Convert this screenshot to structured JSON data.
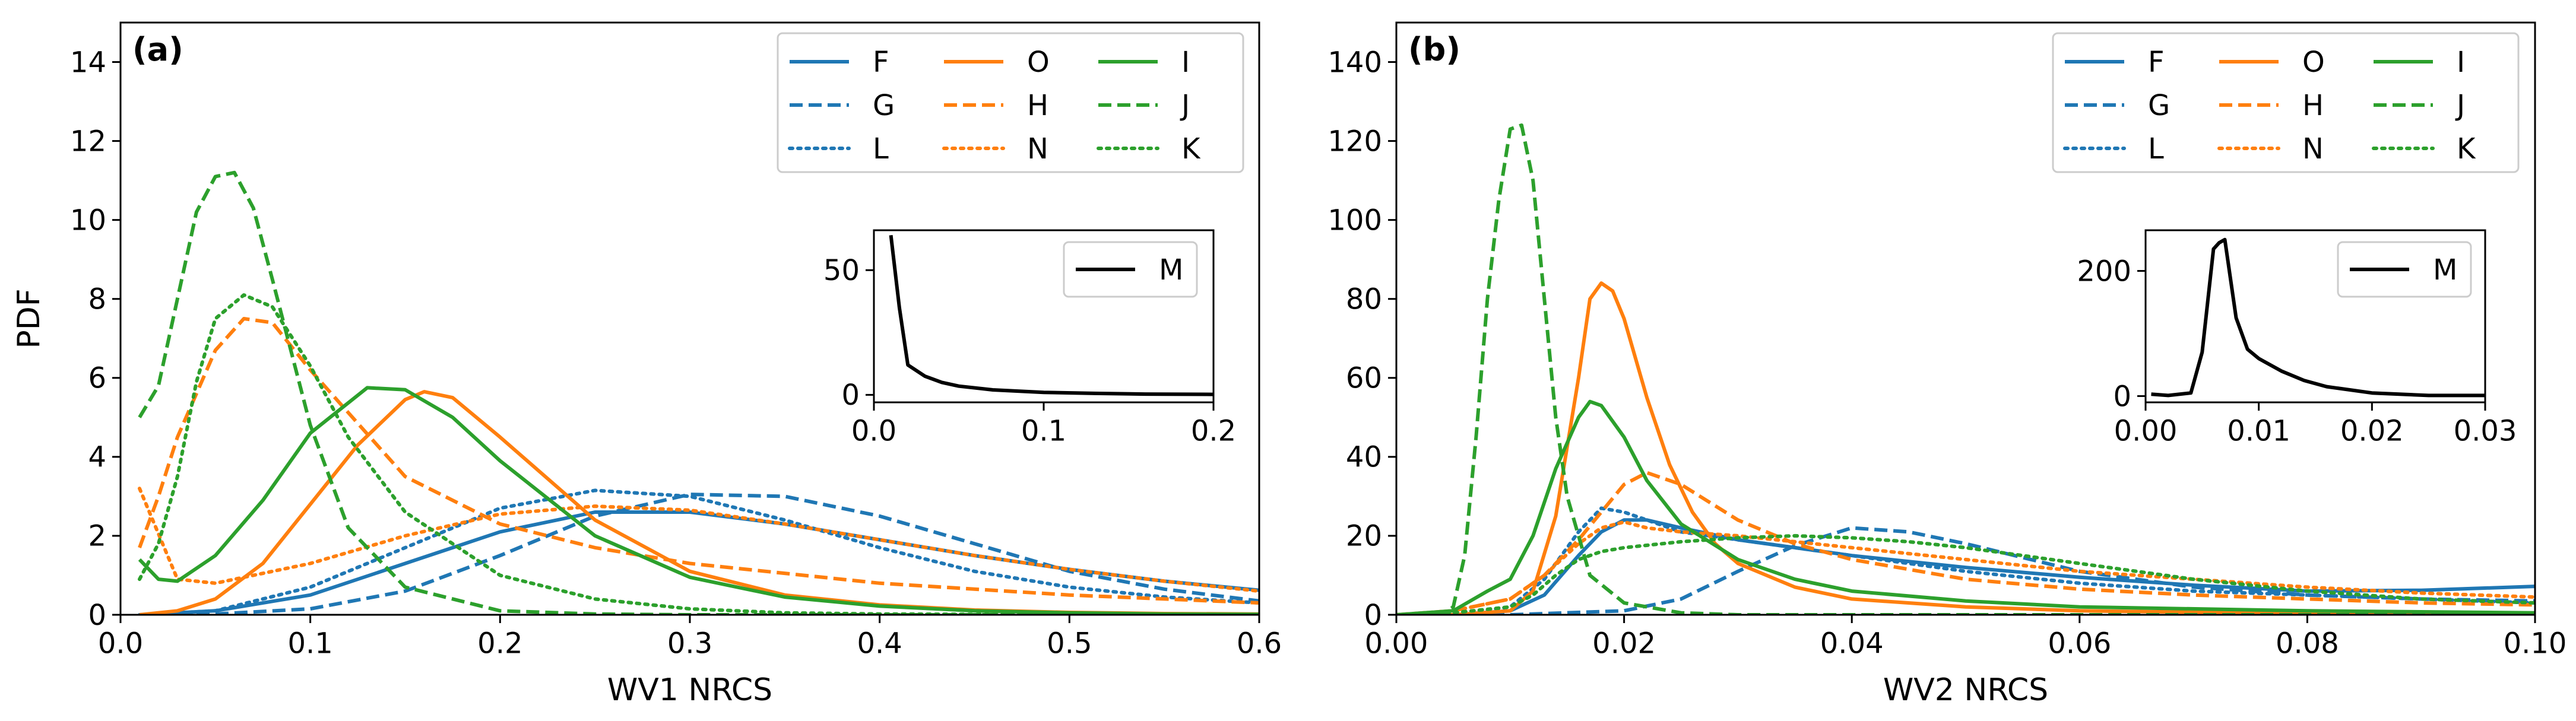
{
  "chart_data": [
    {
      "type": "line",
      "panel_label": "(a)",
      "xlabel": "WV1 NRCS",
      "ylabel": "PDF",
      "xlim": [
        0.0,
        0.6
      ],
      "ylim": [
        0,
        15
      ],
      "xticks": [
        0.0,
        0.1,
        0.2,
        0.3,
        0.4,
        0.5,
        0.6
      ],
      "xtick_labels": [
        "0.0",
        "0.1",
        "0.2",
        "0.3",
        "0.4",
        "0.5",
        "0.6"
      ],
      "yticks": [
        0,
        2,
        4,
        6,
        8,
        10,
        12,
        14
      ],
      "ytick_labels": [
        "0",
        "2",
        "4",
        "6",
        "8",
        "10",
        "12",
        "14"
      ],
      "legend_position": "top-right",
      "series": [
        {
          "name": "F",
          "color": "#1f77b4",
          "style": "solid",
          "x": [
            0.01,
            0.05,
            0.1,
            0.15,
            0.2,
            0.25,
            0.3,
            0.35,
            0.4,
            0.45,
            0.5,
            0.55,
            0.6
          ],
          "y": [
            0.0,
            0.1,
            0.5,
            1.3,
            2.1,
            2.6,
            2.6,
            2.3,
            1.9,
            1.5,
            1.15,
            0.85,
            0.62
          ]
        },
        {
          "name": "G",
          "color": "#1f77b4",
          "style": "dashed",
          "x": [
            0.01,
            0.05,
            0.1,
            0.15,
            0.2,
            0.25,
            0.3,
            0.35,
            0.4,
            0.45,
            0.5,
            0.55,
            0.6
          ],
          "y": [
            0.0,
            0.02,
            0.15,
            0.6,
            1.5,
            2.5,
            3.05,
            3.0,
            2.5,
            1.8,
            1.1,
            0.65,
            0.35
          ]
        },
        {
          "name": "L",
          "color": "#1f77b4",
          "style": "dotted",
          "x": [
            0.01,
            0.05,
            0.1,
            0.15,
            0.2,
            0.25,
            0.3,
            0.35,
            0.4,
            0.45,
            0.5,
            0.55,
            0.6
          ],
          "y": [
            0.0,
            0.1,
            0.7,
            1.7,
            2.7,
            3.15,
            3.0,
            2.4,
            1.7,
            1.1,
            0.7,
            0.45,
            0.3
          ]
        },
        {
          "name": "O",
          "color": "#ff7f0e",
          "style": "solid",
          "x": [
            0.01,
            0.03,
            0.05,
            0.075,
            0.1,
            0.125,
            0.15,
            0.16,
            0.175,
            0.2,
            0.25,
            0.3,
            0.35,
            0.4,
            0.45,
            0.5,
            0.55,
            0.6
          ],
          "y": [
            0.0,
            0.1,
            0.4,
            1.3,
            2.8,
            4.3,
            5.45,
            5.65,
            5.5,
            4.5,
            2.4,
            1.1,
            0.5,
            0.25,
            0.12,
            0.06,
            0.03,
            0.02
          ]
        },
        {
          "name": "H",
          "color": "#ff7f0e",
          "style": "dashed",
          "x": [
            0.01,
            0.02,
            0.03,
            0.05,
            0.065,
            0.08,
            0.1,
            0.15,
            0.2,
            0.25,
            0.3,
            0.4,
            0.5,
            0.6
          ],
          "y": [
            1.7,
            3.0,
            4.5,
            6.7,
            7.5,
            7.4,
            6.2,
            3.5,
            2.3,
            1.7,
            1.3,
            0.8,
            0.5,
            0.3
          ]
        },
        {
          "name": "N",
          "color": "#ff7f0e",
          "style": "dotted",
          "x": [
            0.01,
            0.03,
            0.05,
            0.1,
            0.15,
            0.2,
            0.25,
            0.3,
            0.35,
            0.4,
            0.45,
            0.5,
            0.55,
            0.6
          ],
          "y": [
            3.2,
            0.9,
            0.8,
            1.3,
            2.0,
            2.55,
            2.75,
            2.65,
            2.3,
            1.9,
            1.5,
            1.15,
            0.85,
            0.6
          ]
        },
        {
          "name": "I",
          "color": "#2ca02c",
          "style": "solid",
          "x": [
            0.01,
            0.02,
            0.03,
            0.05,
            0.075,
            0.1,
            0.13,
            0.15,
            0.175,
            0.2,
            0.25,
            0.3,
            0.35,
            0.4,
            0.45,
            0.5,
            0.55,
            0.6
          ],
          "y": [
            1.4,
            0.9,
            0.85,
            1.5,
            2.9,
            4.6,
            5.75,
            5.7,
            5.0,
            3.9,
            2.0,
            0.95,
            0.45,
            0.22,
            0.1,
            0.05,
            0.02,
            0.01
          ]
        },
        {
          "name": "J",
          "color": "#2ca02c",
          "style": "dashed",
          "x": [
            0.01,
            0.02,
            0.03,
            0.04,
            0.05,
            0.06,
            0.07,
            0.08,
            0.1,
            0.12,
            0.15,
            0.2,
            0.25,
            0.3,
            0.4,
            0.5,
            0.6
          ],
          "y": [
            5.0,
            5.8,
            8.0,
            10.2,
            11.1,
            11.2,
            10.3,
            8.5,
            4.8,
            2.2,
            0.7,
            0.1,
            0.02,
            0.0,
            0.0,
            0.0,
            0.0
          ]
        },
        {
          "name": "K",
          "color": "#2ca02c",
          "style": "dotted",
          "x": [
            0.01,
            0.02,
            0.03,
            0.04,
            0.05,
            0.065,
            0.08,
            0.1,
            0.12,
            0.15,
            0.2,
            0.25,
            0.3,
            0.35,
            0.4,
            0.5,
            0.6
          ],
          "y": [
            0.9,
            1.8,
            3.5,
            5.9,
            7.5,
            8.1,
            7.8,
            6.3,
            4.5,
            2.6,
            1.0,
            0.4,
            0.15,
            0.05,
            0.02,
            0.0,
            0.0
          ]
        }
      ],
      "inset": {
        "xlim": [
          0.0,
          0.2
        ],
        "ylim": [
          -3,
          66
        ],
        "xticks": [
          0.0,
          0.1,
          0.2
        ],
        "xtick_labels": [
          "0.0",
          "0.1",
          "0.2"
        ],
        "yticks": [
          0,
          50
        ],
        "ytick_labels": [
          "0",
          "50"
        ],
        "legend_position": "top-right",
        "series": [
          {
            "name": "M",
            "color": "#000000",
            "style": "solid",
            "x": [
              0.01,
              0.015,
              0.02,
              0.03,
              0.04,
              0.05,
              0.07,
              0.1,
              0.13,
              0.16,
              0.2
            ],
            "y": [
              64,
              35,
              12,
              7.5,
              5,
              3.5,
              2,
              1,
              0.6,
              0.3,
              0.2
            ]
          }
        ]
      }
    },
    {
      "type": "line",
      "panel_label": "(b)",
      "xlabel": "WV2 NRCS",
      "ylabel": "",
      "xlim": [
        0.0,
        0.1
      ],
      "ylim": [
        0,
        150
      ],
      "xticks": [
        0.0,
        0.02,
        0.04,
        0.06,
        0.08,
        0.1
      ],
      "xtick_labels": [
        "0.00",
        "0.02",
        "0.04",
        "0.06",
        "0.08",
        "0.10"
      ],
      "yticks": [
        0,
        20,
        40,
        60,
        80,
        100,
        120,
        140
      ],
      "ytick_labels": [
        "0",
        "20",
        "40",
        "60",
        "80",
        "100",
        "120",
        "140"
      ],
      "legend_position": "top-right",
      "series": [
        {
          "name": "F",
          "color": "#1f77b4",
          "style": "solid",
          "x": [
            0.0,
            0.005,
            0.01,
            0.013,
            0.016,
            0.018,
            0.02,
            0.022,
            0.025,
            0.03,
            0.04,
            0.05,
            0.06,
            0.07,
            0.08,
            0.09,
            0.1
          ],
          "y": [
            0,
            0,
            1,
            5,
            15,
            21,
            24,
            24,
            22,
            19,
            15,
            12,
            9.5,
            7.5,
            6,
            6.2,
            7.2
          ]
        },
        {
          "name": "G",
          "color": "#1f77b4",
          "style": "dashed",
          "x": [
            0.0,
            0.01,
            0.02,
            0.025,
            0.03,
            0.035,
            0.04,
            0.045,
            0.05,
            0.06,
            0.07,
            0.08,
            0.09,
            0.1
          ],
          "y": [
            0,
            0,
            1,
            4,
            11,
            17.5,
            22,
            21,
            18,
            11,
            7,
            5,
            4,
            3.5
          ]
        },
        {
          "name": "L",
          "color": "#1f77b4",
          "style": "dotted",
          "x": [
            0.0,
            0.005,
            0.01,
            0.013,
            0.016,
            0.018,
            0.02,
            0.022,
            0.025,
            0.03,
            0.04,
            0.05,
            0.06,
            0.07,
            0.08,
            0.09,
            0.1
          ],
          "y": [
            0,
            0,
            2,
            9,
            21,
            27,
            26,
            24,
            21,
            19,
            15,
            11,
            8,
            6,
            5,
            4,
            3
          ]
        },
        {
          "name": "O",
          "color": "#ff7f0e",
          "style": "solid",
          "x": [
            0.0,
            0.005,
            0.01,
            0.012,
            0.014,
            0.016,
            0.017,
            0.018,
            0.019,
            0.02,
            0.022,
            0.024,
            0.026,
            0.028,
            0.03,
            0.035,
            0.04,
            0.05,
            0.06,
            0.08,
            0.1
          ],
          "y": [
            0,
            0,
            1,
            6,
            25,
            60,
            80,
            84,
            82,
            75,
            55,
            38,
            26,
            18,
            13,
            7,
            4,
            2,
            1,
            0.3,
            0.1
          ]
        },
        {
          "name": "H",
          "color": "#ff7f0e",
          "style": "dashed",
          "x": [
            0.0,
            0.005,
            0.01,
            0.013,
            0.016,
            0.018,
            0.02,
            0.022,
            0.025,
            0.03,
            0.035,
            0.04,
            0.05,
            0.06,
            0.07,
            0.08,
            0.09,
            0.1
          ],
          "y": [
            0,
            1,
            4,
            10,
            19,
            26,
            33,
            36,
            33,
            24,
            18,
            14,
            9,
            6.5,
            5,
            4,
            3,
            2.5
          ]
        },
        {
          "name": "N",
          "color": "#ff7f0e",
          "style": "dotted",
          "x": [
            0.0,
            0.005,
            0.01,
            0.013,
            0.016,
            0.018,
            0.02,
            0.022,
            0.025,
            0.03,
            0.04,
            0.05,
            0.06,
            0.07,
            0.08,
            0.09,
            0.1
          ],
          "y": [
            0,
            1,
            4,
            10,
            18,
            22,
            23.5,
            22,
            21,
            20,
            17,
            14,
            11,
            9,
            7,
            5.5,
            4.5
          ]
        },
        {
          "name": "I",
          "color": "#2ca02c",
          "style": "solid",
          "x": [
            0.0,
            0.005,
            0.008,
            0.01,
            0.012,
            0.014,
            0.016,
            0.017,
            0.018,
            0.02,
            0.022,
            0.025,
            0.03,
            0.035,
            0.04,
            0.05,
            0.06,
            0.08,
            0.1
          ],
          "y": [
            0,
            1,
            6,
            9,
            20,
            37,
            50,
            54,
            53,
            45,
            34,
            23,
            14,
            9,
            6,
            3.5,
            2,
            1,
            0.5
          ]
        },
        {
          "name": "J",
          "color": "#2ca02c",
          "style": "dashed",
          "x": [
            0.0,
            0.004,
            0.005,
            0.006,
            0.007,
            0.008,
            0.009,
            0.01,
            0.011,
            0.012,
            0.013,
            0.014,
            0.015,
            0.017,
            0.02,
            0.025,
            0.03,
            0.04,
            0.1
          ],
          "y": [
            0,
            0,
            2,
            15,
            45,
            80,
            105,
            123,
            124,
            110,
            80,
            50,
            30,
            10,
            3,
            0.5,
            0,
            0,
            0
          ]
        },
        {
          "name": "K",
          "color": "#2ca02c",
          "style": "dotted",
          "x": [
            0.0,
            0.005,
            0.01,
            0.012,
            0.014,
            0.016,
            0.018,
            0.02,
            0.025,
            0.03,
            0.035,
            0.04,
            0.045,
            0.05,
            0.06,
            0.07,
            0.08,
            0.09,
            0.1
          ],
          "y": [
            0,
            0.5,
            2,
            5,
            10,
            14,
            16,
            17,
            18.5,
            19.5,
            20,
            19.5,
            18.5,
            17,
            13,
            9,
            6,
            4,
            3
          ]
        }
      ],
      "inset": {
        "xlim": [
          0.0,
          0.03
        ],
        "ylim": [
          -10,
          265
        ],
        "xticks": [
          0.0,
          0.01,
          0.02,
          0.03
        ],
        "xtick_labels": [
          "0.00",
          "0.01",
          "0.02",
          "0.03"
        ],
        "yticks": [
          0,
          200
        ],
        "ytick_labels": [
          "0",
          "200"
        ],
        "legend_position": "top-right",
        "series": [
          {
            "name": "M",
            "color": "#000000",
            "style": "solid",
            "x": [
              0.0005,
              0.002,
              0.004,
              0.005,
              0.006,
              0.0065,
              0.007,
              0.008,
              0.009,
              0.01,
              0.012,
              0.014,
              0.016,
              0.02,
              0.025,
              0.03
            ],
            "y": [
              3,
              1,
              5,
              70,
              235,
              245,
              250,
              125,
              75,
              60,
              40,
              25,
              15,
              5,
              1,
              1
            ]
          }
        ]
      }
    }
  ]
}
